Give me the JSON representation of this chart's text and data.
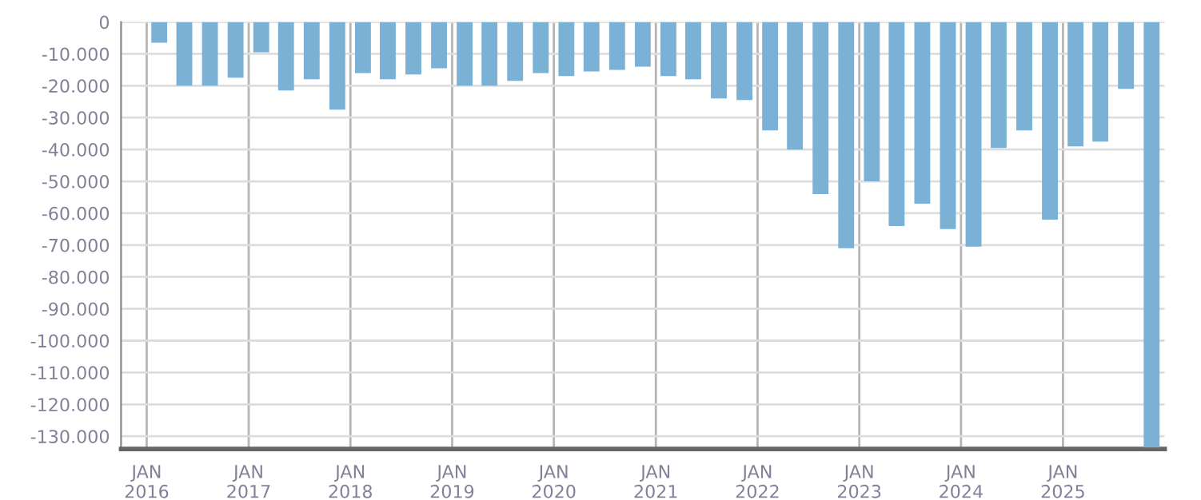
{
  "chart_data": {
    "type": "bar",
    "color": "#7ab1d4",
    "grid": true,
    "x": [
      "2016-02-15",
      "2016-05-15",
      "2016-08-15",
      "2016-11-15",
      "2017-02-15",
      "2017-05-15",
      "2017-08-15",
      "2017-11-15",
      "2018-02-15",
      "2018-05-15",
      "2018-08-15",
      "2018-11-15",
      "2019-02-15",
      "2019-05-15",
      "2019-08-15",
      "2019-11-15",
      "2020-02-15",
      "2020-05-15",
      "2020-08-15",
      "2020-11-15",
      "2021-02-15",
      "2021-05-15",
      "2021-08-15",
      "2021-11-15",
      "2022-02-15",
      "2022-05-15",
      "2022-08-15",
      "2022-11-15",
      "2023-02-15",
      "2023-05-15",
      "2023-08-15",
      "2023-11-15",
      "2024-02-15",
      "2024-05-15",
      "2024-08-15",
      "2024-11-15",
      "2025-02-15",
      "2025-05-15",
      "2025-08-15",
      "2025-11-15"
    ],
    "values": [
      -6500,
      -20000,
      -20000,
      -17500,
      -9500,
      -21500,
      -18000,
      -27500,
      -16000,
      -18000,
      -16500,
      -14500,
      -20000,
      -20000,
      -18500,
      -16000,
      -17000,
      -15500,
      -15000,
      -14000,
      -17000,
      -18000,
      -24000,
      -24500,
      -34000,
      -40000,
      -54000,
      -71000,
      -50000,
      -64000,
      -57000,
      -65000,
      -70500,
      -39500,
      -34000,
      -62000,
      -39000,
      -37500,
      -21000,
      -133500
    ],
    "xlim": [
      "2015-10-01",
      "2026-01-01"
    ],
    "xticks": [
      {
        "value": "2016-01-01",
        "label": "JAN\n2016"
      },
      {
        "value": "2017-01-01",
        "label": "JAN\n2017"
      },
      {
        "value": "2018-01-01",
        "label": "JAN\n2018"
      },
      {
        "value": "2019-01-01",
        "label": "JAN\n2019"
      },
      {
        "value": "2020-01-01",
        "label": "JAN\n2020"
      },
      {
        "value": "2021-01-01",
        "label": "JAN\n2021"
      },
      {
        "value": "2022-01-01",
        "label": "JAN\n2022"
      },
      {
        "value": "2023-01-01",
        "label": "JAN\n2023"
      },
      {
        "value": "2024-01-01",
        "label": "JAN\n2024"
      },
      {
        "value": "2025-01-01",
        "label": "JAN\n2025"
      }
    ],
    "ylim": [
      -134000,
      0
    ],
    "yticks": [
      0,
      {
        "value": -10000,
        "label": "-10.000"
      },
      {
        "value": -20000,
        "label": "-20.000"
      },
      {
        "value": -30000,
        "label": "-30.000"
      },
      {
        "value": -40000,
        "label": "-40.000"
      },
      {
        "value": -50000,
        "label": "-50.000"
      },
      {
        "value": -60000,
        "label": "-60.000"
      },
      {
        "value": -70000,
        "label": "-70.000"
      },
      {
        "value": -80000,
        "label": "-80.000"
      },
      {
        "value": -90000,
        "label": "-90.000"
      },
      {
        "value": -100000,
        "label": "-100.000"
      },
      {
        "value": -110000,
        "label": "-110.000"
      },
      {
        "value": -120000,
        "label": "-120.000"
      },
      {
        "value": -130000,
        "label": "-130.000"
      }
    ]
  }
}
